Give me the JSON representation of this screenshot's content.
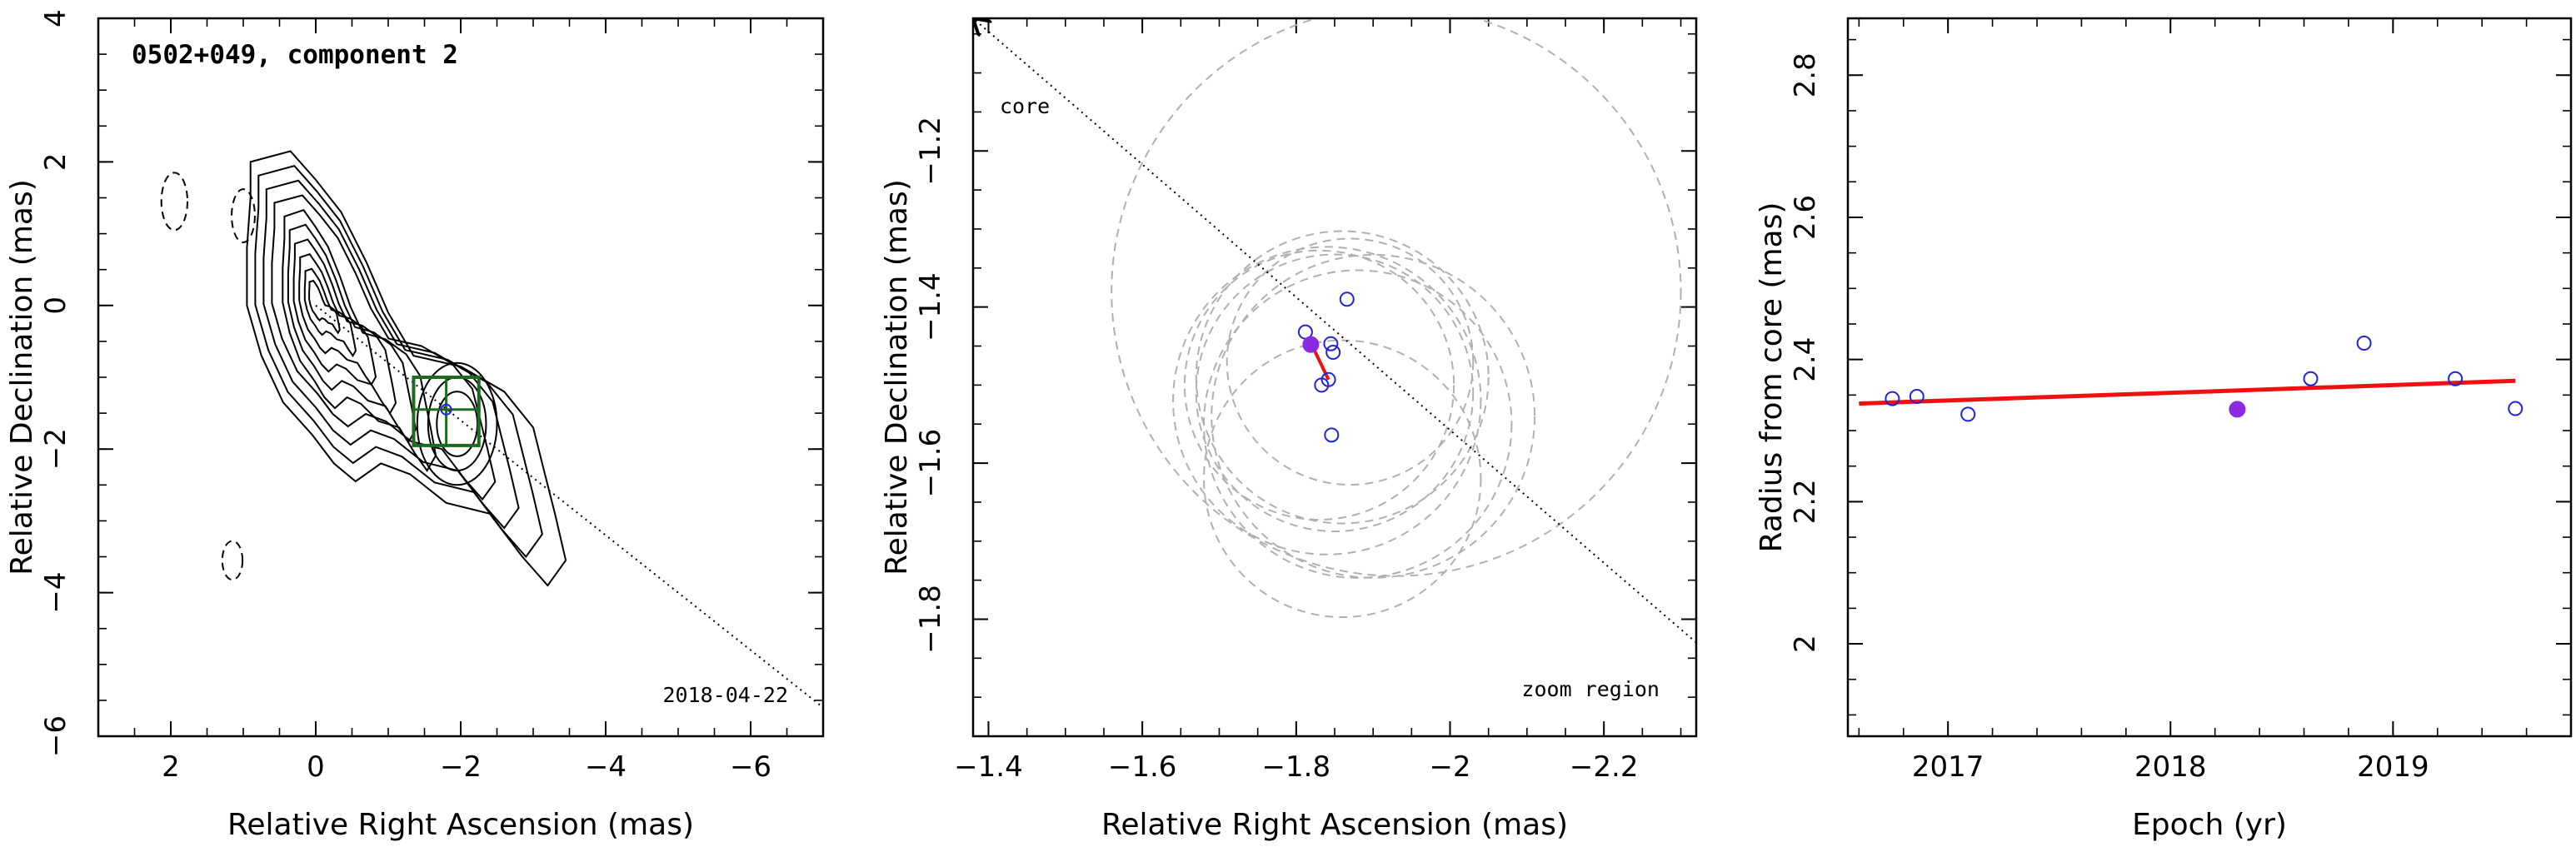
{
  "chart_data": [
    {
      "type": "contour",
      "title": "0502+049, component 2",
      "annotation": "2018-04-22",
      "xlabel": "Relative Right Ascension (mas)",
      "ylabel": "Relative Declination (mas)",
      "xlim": [
        3,
        -7
      ],
      "ylim": [
        -6,
        4
      ],
      "x_ticks": [
        2,
        0,
        -2,
        -4,
        -6
      ],
      "y_ticks": [
        -6,
        -4,
        -2,
        0,
        2,
        4
      ],
      "core_position": [
        0,
        0
      ],
      "component_position": [
        -1.8,
        -1.45
      ],
      "component_box": {
        "x": [
          -1.35,
          -2.25
        ],
        "y": [
          -1.0,
          -1.95
        ]
      },
      "ridge_line": {
        "from": [
          0,
          0
        ],
        "to": [
          -7,
          -5.6
        ]
      },
      "negative_contours": [
        {
          "center": [
            1.95,
            1.45
          ],
          "rx": 0.18,
          "ry": 0.4
        },
        {
          "center": [
            1.0,
            1.25
          ],
          "rx": 0.16,
          "ry": 0.37
        },
        {
          "center": [
            1.15,
            -3.55
          ],
          "rx": 0.14,
          "ry": 0.27
        }
      ]
    },
    {
      "type": "scatter",
      "xlabel": "Relative Right Ascension (mas)",
      "ylabel": "Relative Declination (mas)",
      "annotation": "zoom region",
      "arrow_label": "core",
      "xlim": [
        -1.38,
        -2.32
      ],
      "ylim": [
        -1.95,
        -1.03
      ],
      "x_ticks": [
        -1.4,
        -1.6,
        -1.8,
        -2,
        -2.2
      ],
      "y_ticks": [
        -1.8,
        -1.6,
        -1.4,
        -1.2
      ],
      "points": [
        {
          "x": -1.812,
          "y": -1.432
        },
        {
          "x": -1.845,
          "y": -1.447
        },
        {
          "x": -1.848,
          "y": -1.458
        },
        {
          "x": -1.866,
          "y": -1.39
        },
        {
          "x": -1.833,
          "y": -1.5
        },
        {
          "x": -1.842,
          "y": -1.493
        },
        {
          "x": -1.846,
          "y": -1.564
        }
      ],
      "highlight_point": {
        "x": -1.819,
        "y": -1.448
      },
      "velocity_vector": {
        "from": [
          -1.822,
          -1.452
        ],
        "to": [
          -1.842,
          -1.493
        ]
      },
      "beam_circles": [
        {
          "cx": -1.93,
          "cy": -1.38,
          "r": 0.37
        },
        {
          "cx": -1.85,
          "cy": -1.51,
          "r": 0.18
        },
        {
          "cx": -1.86,
          "cy": -1.49,
          "r": 0.19
        },
        {
          "cx": -1.84,
          "cy": -1.52,
          "r": 0.2
        },
        {
          "cx": -1.87,
          "cy": -1.47,
          "r": 0.16
        },
        {
          "cx": -1.83,
          "cy": -1.5,
          "r": 0.175
        },
        {
          "cx": -1.88,
          "cy": -1.55,
          "r": 0.2
        },
        {
          "cx": -1.86,
          "cy": -1.62,
          "r": 0.18
        },
        {
          "cx": -1.9,
          "cy": -1.54,
          "r": 0.21
        }
      ],
      "core_direction": {
        "from": [
          -2.32,
          -1.83
        ],
        "to": [
          -1.38,
          -1.03
        ]
      }
    },
    {
      "type": "scatter",
      "xlabel": "Epoch (yr)",
      "ylabel": "Radius from core (mas)",
      "xlim": [
        2016.55,
        2019.8
      ],
      "ylim": [
        1.87,
        2.88
      ],
      "x_ticks": [
        2017,
        2018,
        2019
      ],
      "y_ticks": [
        2,
        2.2,
        2.4,
        2.6,
        2.8
      ],
      "series": [
        {
          "x": [
            2016.75,
            2016.86,
            2017.09,
            2018.63,
            2018.87,
            2019.28,
            2019.55
          ],
          "y": [
            2.345,
            2.348,
            2.323,
            2.373,
            2.423,
            2.373,
            2.331
          ]
        }
      ],
      "highlight_point": {
        "x": 2018.3,
        "y": 2.33
      },
      "fit_line": {
        "x": [
          2016.6,
          2019.55
        ],
        "y": [
          2.338,
          2.37
        ]
      }
    }
  ],
  "colors": {
    "axes": "#000000",
    "contour": "#000000",
    "component_box": "#1d6b1d",
    "point_open": "#2222dd",
    "point_filled": "#8a2be2",
    "fit_line": "#ee1111",
    "beam_circle": "#b0b0b0"
  }
}
